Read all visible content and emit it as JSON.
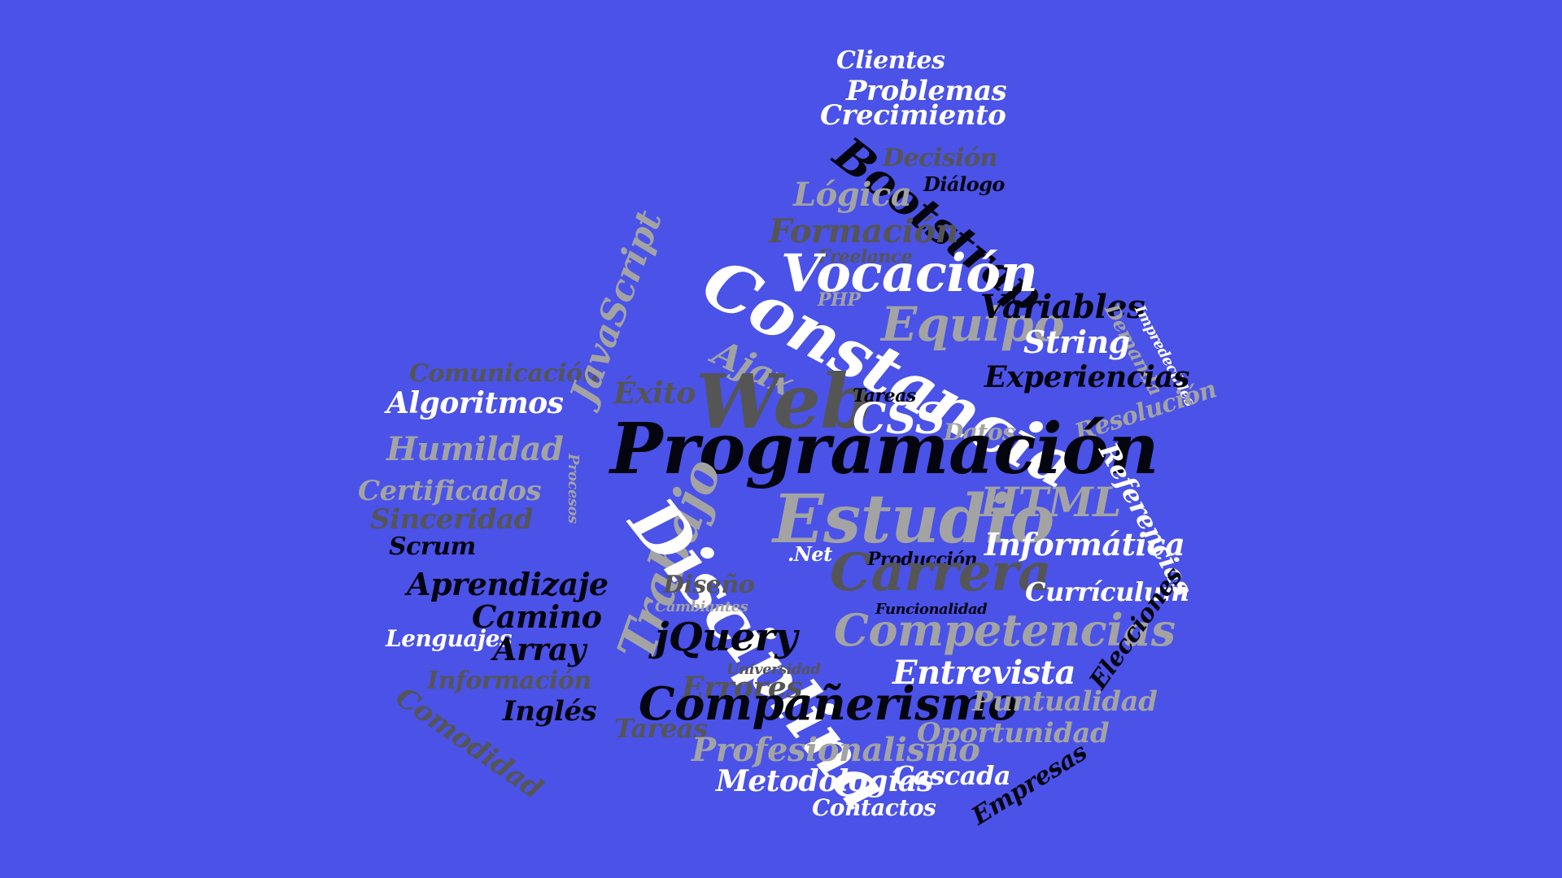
{
  "background": "#4a52e8",
  "palette": {
    "white": "#ffffff",
    "black": "#050510",
    "gray": "#a3a3a3",
    "dark": "#555555"
  },
  "words": [
    "Clientes",
    "Problemas",
    "Crecimiento",
    "Bootstrap",
    "Decisión",
    "Diálogo",
    "Lógica",
    "Formación",
    "Freelance",
    "Vocación",
    "PHP",
    "Constancia",
    "Equipo",
    "Variables",
    "Demanda",
    "Impredecibles",
    "String",
    "Ajax",
    "Experiencias",
    "Comunicación",
    "Algoritmos",
    "Éxito",
    "Web",
    "Tareas",
    "CSS",
    "Resolución",
    "Humildad",
    "JavaScript",
    "Datos",
    "Procesos",
    "Programación",
    "Referencias",
    "Certificados",
    "HTML",
    "Sinceridad",
    "Trabajo",
    "Disciplina",
    "Estudio",
    "Scrum",
    ".Net",
    "Producción",
    "Informática",
    "Carrera",
    "Aprendizaje",
    "Diseño",
    "Currículum",
    "Cambiantes",
    "Funcionalidad",
    "Camino",
    "Lenguajes",
    "Competencias",
    "jQuery",
    "Array",
    "Elecciones",
    "Universidad",
    "Entrevista",
    "Información",
    "Errores",
    "Comodidad",
    "Compañerismo",
    "Puntualidad",
    "Inglés",
    "Tareas",
    "Oportunidad",
    "Profesionalismo",
    "Metodologías",
    "Cascada",
    "Empresas",
    "Contactos"
  ]
}
